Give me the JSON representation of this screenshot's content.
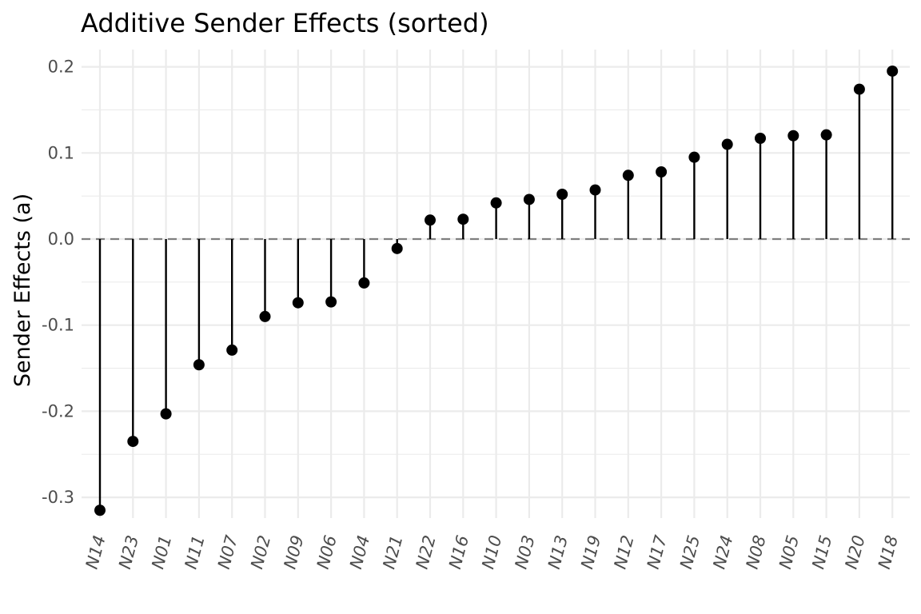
{
  "chart_data": {
    "type": "lollipop",
    "title": "Additive Sender Effects (sorted)",
    "xlabel": "",
    "ylabel": "Sender Effects (a)",
    "ylim": [
      -0.335,
      0.22
    ],
    "yticks": [
      -0.3,
      -0.2,
      -0.1,
      0.0,
      0.1,
      0.2
    ],
    "ytick_labels": [
      "-0.3",
      "-0.2",
      "-0.1",
      "0.0",
      "0.1",
      "0.2"
    ],
    "reference_line": 0.0,
    "grid": true,
    "categories": [
      "N14",
      "N23",
      "N01",
      "N11",
      "N07",
      "N02",
      "N09",
      "N06",
      "N04",
      "N21",
      "N22",
      "N16",
      "N10",
      "N03",
      "N13",
      "N19",
      "N12",
      "N17",
      "N25",
      "N24",
      "N08",
      "N05",
      "N15",
      "N20",
      "N18"
    ],
    "values": [
      -0.315,
      -0.235,
      -0.203,
      -0.146,
      -0.129,
      -0.09,
      -0.074,
      -0.073,
      -0.051,
      -0.011,
      0.022,
      0.023,
      0.042,
      0.046,
      0.052,
      0.057,
      0.074,
      0.078,
      0.095,
      0.11,
      0.117,
      0.12,
      0.121,
      0.174,
      0.195
    ],
    "colors": {
      "stem": "#000000",
      "point": "#000000",
      "grid": "#ebebeb",
      "refline": "#7f7f7f"
    }
  }
}
